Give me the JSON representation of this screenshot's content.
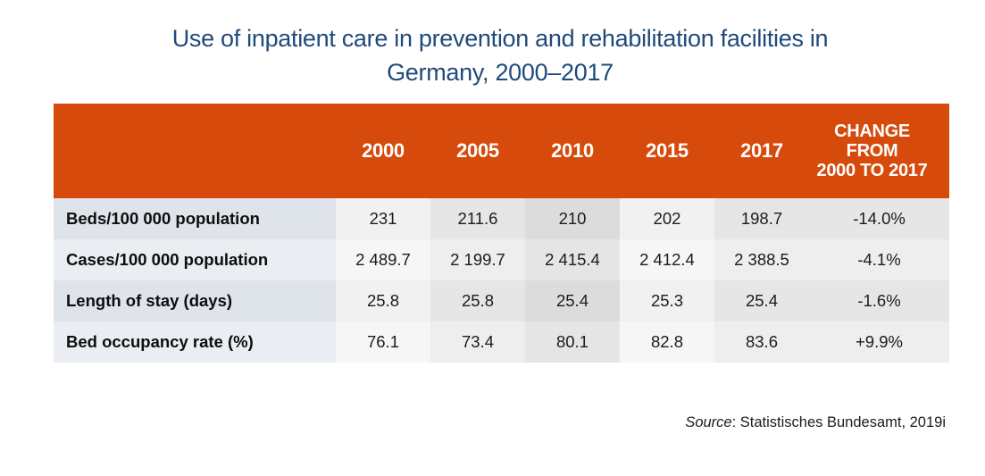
{
  "title_line1": "Use of inpatient care in prevention and rehabilitation facilities in",
  "title_line2": "Germany, 2000–2017",
  "colors": {
    "header_bg": "#d64a0b",
    "title": "#1f4a7a"
  },
  "table": {
    "headers": [
      "",
      "2000",
      "2005",
      "2010",
      "2015",
      "2017"
    ],
    "change_header_line1": "CHANGE FROM",
    "change_header_line2": "2000 TO 2017",
    "rows": [
      {
        "label": "Beds/100 000 population",
        "values": [
          "231",
          "211.6",
          "210",
          "202",
          "198.7"
        ],
        "change": "-14.0%"
      },
      {
        "label": "Cases/100 000 population",
        "values": [
          "2 489.7",
          "2 199.7",
          "2 415.4",
          "2 412.4",
          "2 388.5"
        ],
        "change": "-4.1%"
      },
      {
        "label": "Length of stay (days)",
        "values": [
          "25.8",
          "25.8",
          "25.4",
          "25.3",
          "25.4"
        ],
        "change": "-1.6%"
      },
      {
        "label": "Bed occupancy rate (%)",
        "values": [
          "76.1",
          "73.4",
          "80.1",
          "82.8",
          "83.6"
        ],
        "change": "+9.9%"
      }
    ]
  },
  "source": {
    "prefix": "Source",
    "text": ": Statistisches Bundesamt, 2019i"
  }
}
